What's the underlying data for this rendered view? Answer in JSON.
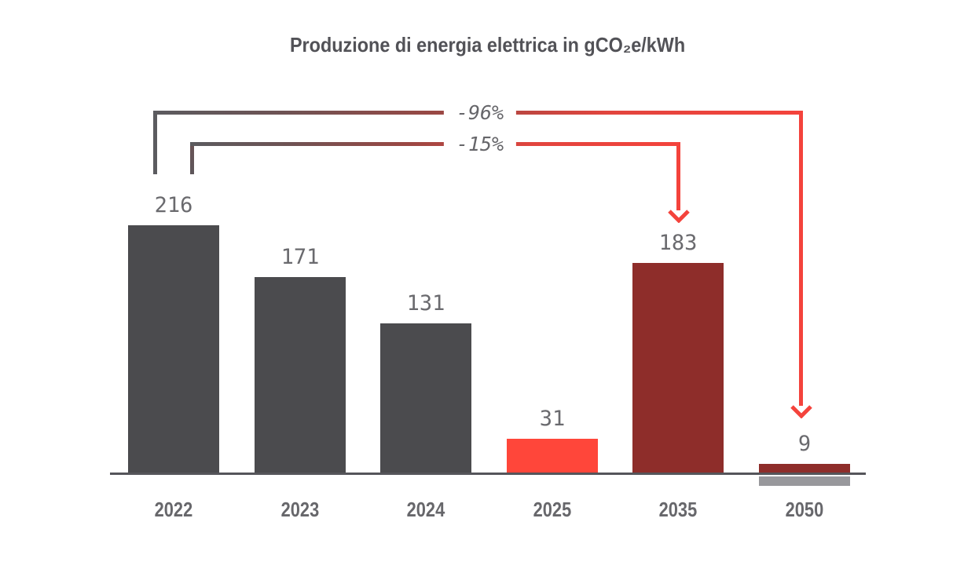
{
  "chart_data": {
    "type": "bar",
    "title": "Produzione di energia elettrica in gCO₂e/kWh",
    "categories": [
      "2022",
      "2023",
      "2024",
      "2025",
      "2035",
      "2050"
    ],
    "values": [
      216,
      171,
      131,
      31,
      183,
      9
    ],
    "xlabel": "",
    "ylabel": "gCO₂e/kWh",
    "ylim": [
      0,
      230
    ],
    "grid": false,
    "y_axis_visible": false,
    "baseline_visible": true,
    "bars": [
      {
        "year": "2022",
        "value": 216,
        "color": "#4b4b4e"
      },
      {
        "year": "2023",
        "value": 171,
        "color": "#4b4b4e"
      },
      {
        "year": "2024",
        "value": 131,
        "color": "#4b4b4e"
      },
      {
        "year": "2025",
        "value": 31,
        "color": "#ff463a"
      },
      {
        "year": "2035",
        "value": 183,
        "color": "#8e2d2a"
      },
      {
        "year": "2050",
        "value": 9,
        "color": "#8e2d2a",
        "below_axis_marker_color": "#98989c"
      }
    ],
    "annotations": [
      {
        "label": "-96%",
        "from_year": "2022",
        "to_year": "2050"
      },
      {
        "label": "-15%",
        "from_year": "2022",
        "to_year": "2035"
      }
    ],
    "colors": {
      "bar_gray": "#4b4b4e",
      "bar_bright_red": "#ff463a",
      "bar_maroon": "#8e2d2a",
      "under_bar_gray": "#98989c",
      "annotation_line_gray": "#5b5b5f",
      "annotation_line_red": "#f4433c",
      "value_label_gray": "#6a6a6e",
      "axis_label_gray": "#67676b",
      "axis_line_gray": "#55555a",
      "title_gray": "#525257"
    }
  }
}
